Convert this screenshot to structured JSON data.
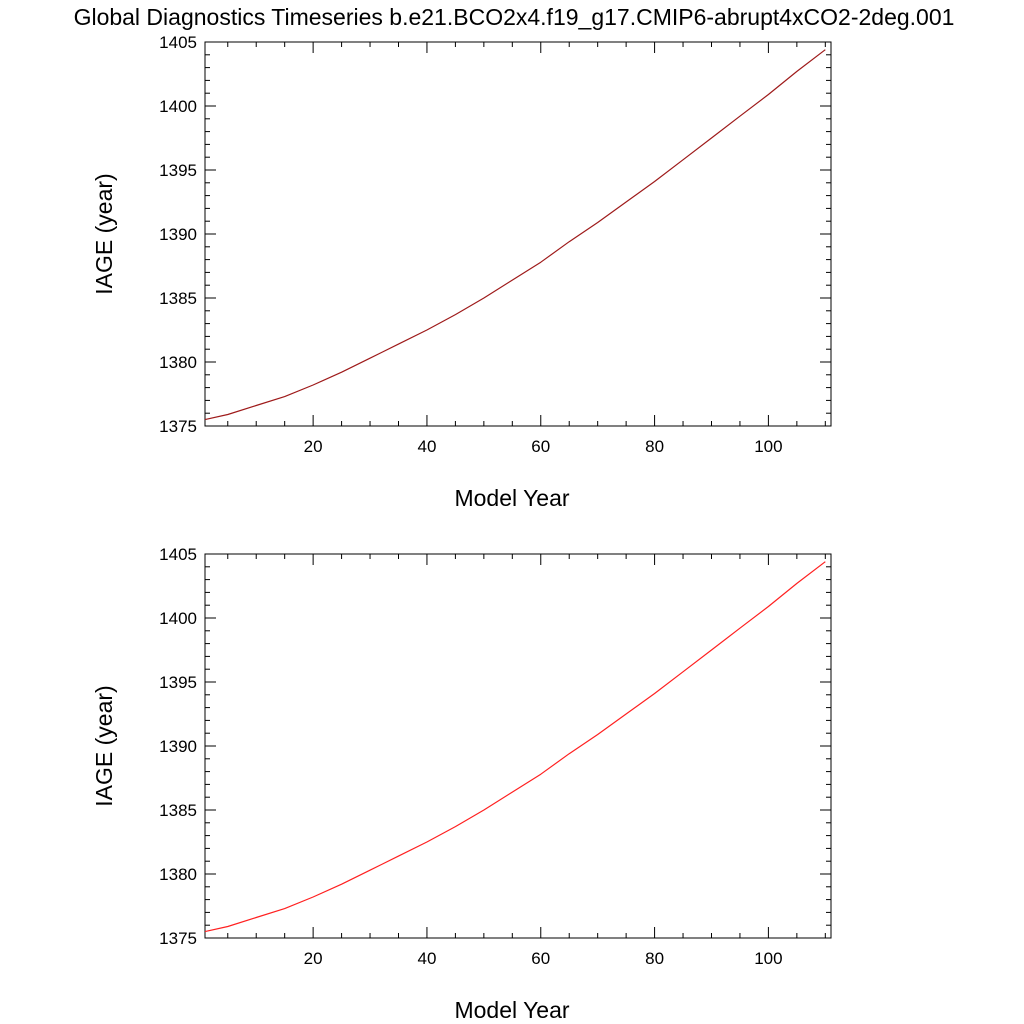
{
  "figure": {
    "title": "Global Diagnostics Timeseries b.e21.BCO2x4.f19_g17.CMIP6-abrupt4xCO2-2deg.001"
  },
  "chart_data": [
    {
      "type": "line",
      "xlabel": "Model Year",
      "ylabel": "IAGE (year)",
      "xlim": [
        1,
        111
      ],
      "ylim": [
        1375,
        1405
      ],
      "x_ticks": [
        20,
        40,
        60,
        80,
        100
      ],
      "y_ticks": [
        1375,
        1380,
        1385,
        1390,
        1395,
        1400,
        1405
      ],
      "grid": false,
      "series": [
        {
          "color": "#9e1a1a",
          "x": [
            1,
            5,
            10,
            15,
            20,
            25,
            30,
            35,
            40,
            45,
            50,
            55,
            60,
            65,
            70,
            75,
            80,
            85,
            90,
            95,
            100,
            105,
            110
          ],
          "y": [
            1375.5,
            1375.9,
            1376.6,
            1377.3,
            1378.2,
            1379.2,
            1380.3,
            1381.4,
            1382.5,
            1383.7,
            1385.0,
            1386.4,
            1387.8,
            1389.4,
            1390.9,
            1392.5,
            1394.1,
            1395.8,
            1397.5,
            1399.2,
            1400.9,
            1402.7,
            1404.4
          ]
        }
      ]
    },
    {
      "type": "line",
      "xlabel": "Model Year",
      "ylabel": "IAGE (year)",
      "xlim": [
        1,
        111
      ],
      "ylim": [
        1375,
        1405
      ],
      "x_ticks": [
        20,
        40,
        60,
        80,
        100
      ],
      "y_ticks": [
        1375,
        1380,
        1385,
        1390,
        1395,
        1400,
        1405
      ],
      "grid": false,
      "series": [
        {
          "color": "#ff2020",
          "x": [
            1,
            5,
            10,
            15,
            20,
            25,
            30,
            35,
            40,
            45,
            50,
            55,
            60,
            65,
            70,
            75,
            80,
            85,
            90,
            95,
            100,
            105,
            110
          ],
          "y": [
            1375.5,
            1375.9,
            1376.6,
            1377.3,
            1378.2,
            1379.2,
            1380.3,
            1381.4,
            1382.5,
            1383.7,
            1385.0,
            1386.4,
            1387.8,
            1389.4,
            1390.9,
            1392.5,
            1394.1,
            1395.8,
            1397.5,
            1399.2,
            1400.9,
            1402.7,
            1404.4
          ]
        }
      ]
    }
  ]
}
